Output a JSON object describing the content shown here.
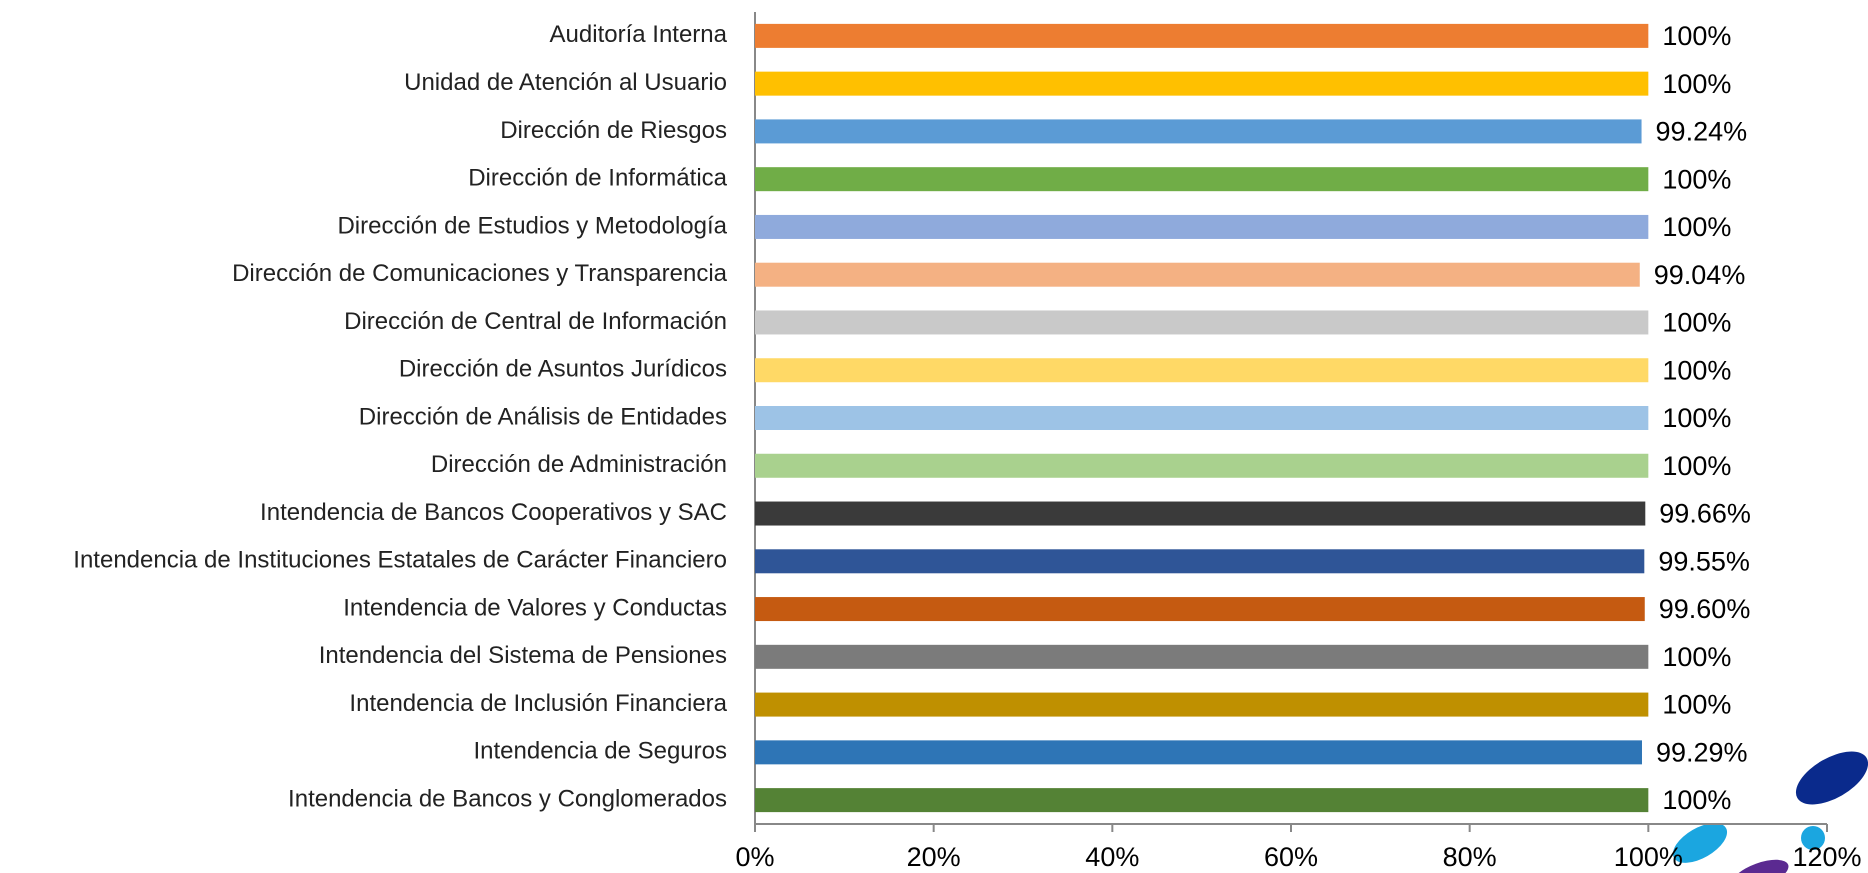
{
  "chart_data": {
    "type": "bar",
    "orientation": "horizontal",
    "categories": [
      "Auditoría Interna",
      "Unidad de Atención al Usuario",
      "Dirección de Riesgos",
      "Dirección de Informática",
      "Dirección de Estudios y Metodología",
      "Dirección de Comunicaciones y Transparencia",
      "Dirección de Central de Información",
      "Dirección de Asuntos Jurídicos",
      "Dirección de Análisis de Entidades",
      "Dirección de Administración",
      "Intendencia de Bancos Cooperativos y SAC",
      "Intendencia de Instituciones Estatales de Carácter Financiero",
      "Intendencia de Valores y Conductas",
      "Intendencia del Sistema de Pensiones",
      "Intendencia de Inclusión Financiera",
      "Intendencia de Seguros",
      "Intendencia de Bancos y Conglomerados"
    ],
    "values": [
      100,
      100,
      99.24,
      100,
      100,
      99.04,
      100,
      100,
      100,
      100,
      99.66,
      99.55,
      99.6,
      100,
      100,
      99.29,
      100
    ],
    "value_labels": [
      "100%",
      "100%",
      "99.24%",
      "100%",
      "100%",
      "99.04%",
      "100%",
      "100%",
      "100%",
      "100%",
      "99.66%",
      "99.55%",
      "99.60%",
      "100%",
      "100%",
      "99.29%",
      "100%"
    ],
    "colors": [
      "#ed7d31",
      "#ffc000",
      "#5b9bd5",
      "#70ad47",
      "#8faadc",
      "#f4b183",
      "#c9c9c9",
      "#ffd966",
      "#9dc3e6",
      "#a9d18e",
      "#3a3a3a",
      "#2f5597",
      "#c55a11",
      "#7b7b7b",
      "#bf9000",
      "#2e75b6",
      "#548235"
    ],
    "xlim": [
      0,
      120
    ],
    "xticks": [
      {
        "value": 0,
        "label": "0%"
      },
      {
        "value": 20,
        "label": "20%"
      },
      {
        "value": 40,
        "label": "40%"
      },
      {
        "value": 60,
        "label": "60%"
      },
      {
        "value": 80,
        "label": "80%"
      },
      {
        "value": 100,
        "label": "100%"
      },
      {
        "value": 120,
        "label": "120%"
      }
    ]
  }
}
